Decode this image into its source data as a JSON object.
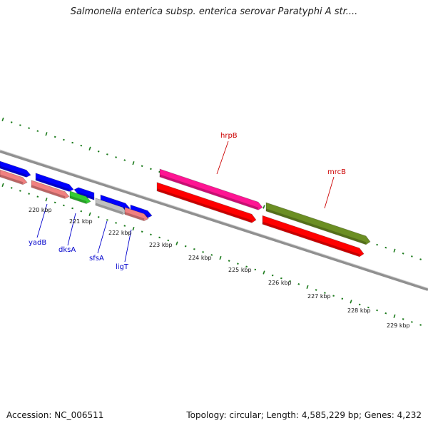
{
  "title": "Salmonella enterica subsp. enterica serovar Paratyphi A str....",
  "footer": {
    "accession": "Accession: NC_006511",
    "summary": "Topology: circular; Length: 4,585,229 bp; Genes: 4,232"
  },
  "colors": {
    "backbone": "#808080",
    "tick": "#1a7a1a",
    "gene_label": "#0000cc",
    "highlight_label": "#cc0000"
  },
  "scale_labels": [
    "220 kbp",
    "221 kbp",
    "222 kbp",
    "223 kbp",
    "224 kbp",
    "225 kbp",
    "226 kbp",
    "227 kbp",
    "228 kbp",
    "229 kbp"
  ],
  "features": [
    {
      "name": "upper-left-blue-1",
      "color": "#0000ff",
      "strand": "+"
    },
    {
      "name": "upper-left-blue-2",
      "color": "#0000ff",
      "strand": "+"
    },
    {
      "name": "upper-left-blue-3",
      "color": "#0000ff",
      "strand": "-"
    },
    {
      "name": "upper-left-blue-4",
      "color": "#0000ff",
      "strand": "+"
    },
    {
      "name": "upper-left-blue-5",
      "color": "#0000ff",
      "strand": "+"
    },
    {
      "name": "hrpB-feature",
      "color": "#ff1493",
      "strand": "+"
    },
    {
      "name": "mrcB-feature",
      "color": "#6b8e23",
      "strand": "+"
    },
    {
      "name": "lower-salmon-1",
      "color": "#f08080",
      "strand": "+"
    },
    {
      "name": "lower-salmon-2",
      "color": "#f08080",
      "strand": "+"
    },
    {
      "name": "lower-green",
      "color": "#33cc33",
      "strand": "+"
    },
    {
      "name": "lower-gray",
      "color": "#c0c0c0",
      "strand": "+"
    },
    {
      "name": "lower-salmon-3",
      "color": "#f08080",
      "strand": "+"
    },
    {
      "name": "lower-red-1",
      "color": "#ff0000",
      "strand": "+"
    },
    {
      "name": "lower-red-2",
      "color": "#ff0000",
      "strand": "+"
    }
  ],
  "gene_labels": [
    {
      "text": "yadB",
      "color": "#0000cc"
    },
    {
      "text": "dksA",
      "color": "#0000cc"
    },
    {
      "text": "sfsA",
      "color": "#0000cc"
    },
    {
      "text": "ligT",
      "color": "#0000cc"
    },
    {
      "text": "hrpB",
      "color": "#cc0000"
    },
    {
      "text": "mrcB",
      "color": "#cc0000"
    }
  ]
}
